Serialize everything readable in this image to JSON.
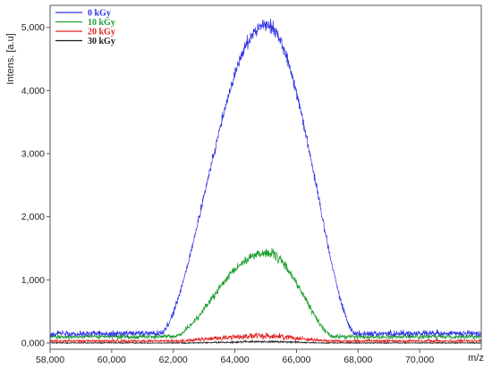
{
  "chart_data": {
    "type": "line",
    "title": "",
    "ylabel": "Intens. [a.u]",
    "xlabel": "m/z",
    "xlim": [
      58000,
      72000
    ],
    "ylim": [
      -100,
      5350
    ],
    "x_ticks": [
      58000,
      60000,
      62000,
      64000,
      66000,
      68000,
      70000
    ],
    "x_tick_labels": [
      "58,000",
      "60,000",
      "62,000",
      "64,000",
      "66,000",
      "68,000",
      "70,000"
    ],
    "y_ticks": [
      0,
      1000,
      2000,
      3000,
      4000,
      5000
    ],
    "y_tick_labels": [
      "0,000",
      "1,000",
      "2,000",
      "3,000",
      "4,000",
      "5,000"
    ],
    "grid": false,
    "legend_position": "top-left",
    "series": [
      {
        "name": "0 kGy",
        "color": "#2a2ee6",
        "baseline": 150,
        "noise": 70,
        "peak": {
          "center": 65000,
          "height": 4900,
          "rise_start": 61600,
          "fall_end": 67900
        }
      },
      {
        "name": "10 kGy",
        "color": "#1f9e2f",
        "baseline": 100,
        "noise": 55,
        "peak": {
          "center": 65000,
          "height": 1330,
          "rise_start": 62000,
          "fall_end": 67200
        }
      },
      {
        "name": "20 kGy",
        "color": "#e02020",
        "baseline": 30,
        "noise": 35,
        "peak": {
          "center": 64900,
          "height": 80,
          "rise_start": 62000,
          "fall_end": 67200
        }
      },
      {
        "name": "30 kGy",
        "color": "#1a1a1a",
        "baseline": 0,
        "noise": 12,
        "peak": {
          "center": 65000,
          "height": 20,
          "rise_start": 62500,
          "fall_end": 67000
        }
      }
    ]
  }
}
